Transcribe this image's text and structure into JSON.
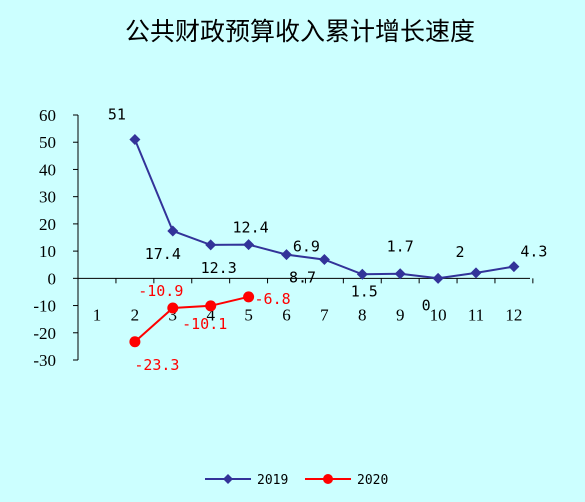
{
  "chart_data": {
    "type": "line",
    "title": "公共财政预算收入累计增长速度",
    "xlabel": "",
    "ylabel": "",
    "categories": [
      "1",
      "2",
      "3",
      "4",
      "5",
      "6",
      "7",
      "8",
      "9",
      "10",
      "11",
      "12"
    ],
    "ylim": [
      -30,
      60
    ],
    "yticks": [
      60,
      50,
      40,
      30,
      20,
      10,
      0,
      -10,
      -20,
      -30
    ],
    "grid": false,
    "legend": "bottom",
    "series": [
      {
        "name": "2019",
        "color": "#333399",
        "marker": "diamond",
        "values": [
          null,
          51,
          17.4,
          12.3,
          12.4,
          8.7,
          6.9,
          1.5,
          1.7,
          0,
          2,
          4.3
        ],
        "labels": [
          null,
          "51",
          "17.4",
          "12.3",
          "12.4",
          "8.7",
          "6.9",
          "1.5",
          "1.7",
          "0",
          "2",
          "4.3"
        ]
      },
      {
        "name": "2020",
        "color": "#ff0000",
        "marker": "circle",
        "values": [
          null,
          -23.3,
          -10.9,
          -10.1,
          -6.8,
          null,
          null,
          null,
          null,
          null,
          null,
          null
        ],
        "labels": [
          null,
          "-23.3",
          "-10.9",
          "-10.1",
          "-6.8",
          null,
          null,
          null,
          null,
          null,
          null,
          null
        ]
      }
    ]
  }
}
